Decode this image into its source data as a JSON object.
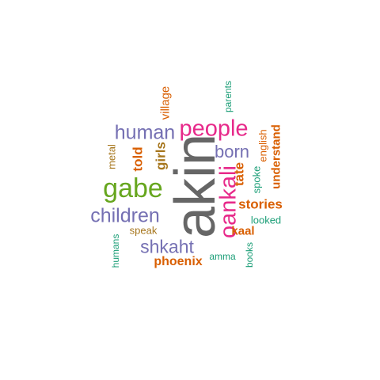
{
  "colors": {
    "gray": "#666666",
    "pink": "#e7298a",
    "green": "#66a61e",
    "purple": "#7570b3",
    "orange": "#d95f02",
    "tan": "#a6761d",
    "teal": "#1b9e77"
  },
  "words": {
    "akin": "akin",
    "oankali": "oankali",
    "gabe": "gabe",
    "people": "people",
    "children": "children",
    "human": "human",
    "shkaht": "shkaht",
    "born": "born",
    "stories": "stories",
    "tate": "tate",
    "told": "told",
    "girls": "girls",
    "understand": "understand",
    "phoenix": "phoenix",
    "kaal": "kaal",
    "village": "village",
    "metal": "metal",
    "speak": "speak",
    "english": "english",
    "spoke": "spoke",
    "parents": "parents",
    "looked": "looked",
    "humans": "humans",
    "amma": "amma",
    "books": "books"
  }
}
